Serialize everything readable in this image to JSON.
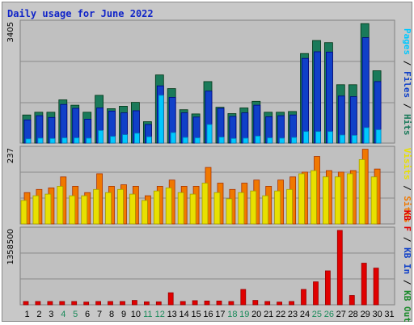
{
  "chart_data": {
    "type": "bar",
    "title": "Daily usage for June 2022",
    "days": [
      "1",
      "2",
      "3",
      "4",
      "5",
      "6",
      "7",
      "8",
      "9",
      "10",
      "11",
      "12",
      "13",
      "14",
      "15",
      "16",
      "17",
      "18",
      "19",
      "20",
      "21",
      "22",
      "23",
      "24",
      "25",
      "26",
      "27",
      "28",
      "29",
      "30",
      "31"
    ],
    "weekend_days": [
      4,
      5,
      11,
      12,
      18,
      19,
      25,
      26
    ],
    "panels": [
      {
        "id": "hits",
        "max_label": "3405",
        "ymax": 3405,
        "right_labels": [
          {
            "text": "Pages",
            "color": "#00c8ff"
          },
          {
            "text": " / ",
            "color": "#000000"
          },
          {
            "text": "Files",
            "color": "#1040c8"
          },
          {
            "text": " / ",
            "color": "#000000"
          },
          {
            "text": "Hits",
            "color": "#1a7a5a"
          }
        ],
        "series": [
          {
            "name": "Hits",
            "color": "#1a7a5a",
            "values": [
              800,
              880,
              880,
              1230,
              1080,
              880,
              1360,
              980,
              1050,
              1160,
              610,
              1940,
              1550,
              950,
              830,
              1750,
              1020,
              840,
              1000,
              1190,
              880,
              880,
              900,
              2550,
              2920,
              2860,
              1660,
              1660,
              3400,
              2060,
              0
            ]
          },
          {
            "name": "Files",
            "color": "#1040c8",
            "values": [
              660,
              780,
              730,
              1100,
              990,
              680,
              1000,
              910,
              860,
              920,
              530,
              1630,
              1300,
              860,
              740,
              1480,
              990,
              760,
              860,
              1080,
              750,
              780,
              800,
              2410,
              2600,
              2590,
              1340,
              1320,
              3000,
              1750,
              0
            ]
          },
          {
            "name": "Pages",
            "color": "#00c8ff",
            "values": [
              120,
              140,
              130,
              150,
              150,
              140,
              360,
              190,
              240,
              280,
              180,
              1360,
              300,
              160,
              150,
              530,
              170,
              130,
              140,
              200,
              150,
              140,
              160,
              330,
              330,
              330,
              230,
              220,
              440,
              380,
              0
            ]
          }
        ]
      },
      {
        "id": "visits",
        "max_label": "237",
        "ymax": 237,
        "right_labels": [
          {
            "text": "Visits",
            "color": "#e8e000"
          },
          {
            "text": " / ",
            "color": "#000000"
          },
          {
            "text": "Sites",
            "color": "#f07800"
          }
        ],
        "series": [
          {
            "name": "Sites",
            "color": "#f07800",
            "values": [
              100,
              110,
              115,
              150,
              120,
              100,
              160,
              120,
              125,
              120,
              90,
              120,
              140,
              120,
              120,
              180,
              130,
              110,
              130,
              140,
              120,
              140,
              150,
              165,
              215,
              170,
              165,
              170,
              238,
              175,
              0
            ]
          },
          {
            "name": "Visits",
            "color": "#e8e000",
            "values": [
              75,
              90,
              95,
              120,
              90,
              90,
              110,
              100,
              110,
              95,
              75,
              105,
              115,
              100,
              95,
              130,
              100,
              80,
              100,
              105,
              90,
              105,
              110,
              160,
              170,
              150,
              150,
              160,
              205,
              150,
              0
            ]
          }
        ]
      },
      {
        "id": "kbytes",
        "max_label": "1358500",
        "ymax": 1358500,
        "right_labels": [
          {
            "text": "KB F",
            "color": "#e00000"
          },
          {
            "text": " / ",
            "color": "#000000"
          },
          {
            "text": "KB In",
            "color": "#1040c8"
          },
          {
            "text": " / ",
            "color": "#000000"
          },
          {
            "text": "KB Out",
            "color": "#1a8a2a"
          }
        ],
        "series": [
          {
            "name": "KB F",
            "color": "#e00000",
            "values": [
              60000,
              60000,
              60000,
              60000,
              60000,
              50000,
              60000,
              60000,
              60000,
              80000,
              55000,
              55000,
              220000,
              60000,
              75000,
              70000,
              70000,
              60000,
              280000,
              80000,
              60000,
              50000,
              60000,
              280000,
              420000,
              620000,
              1358500,
              170000,
              760000,
              670000,
              0
            ]
          }
        ]
      }
    ]
  }
}
